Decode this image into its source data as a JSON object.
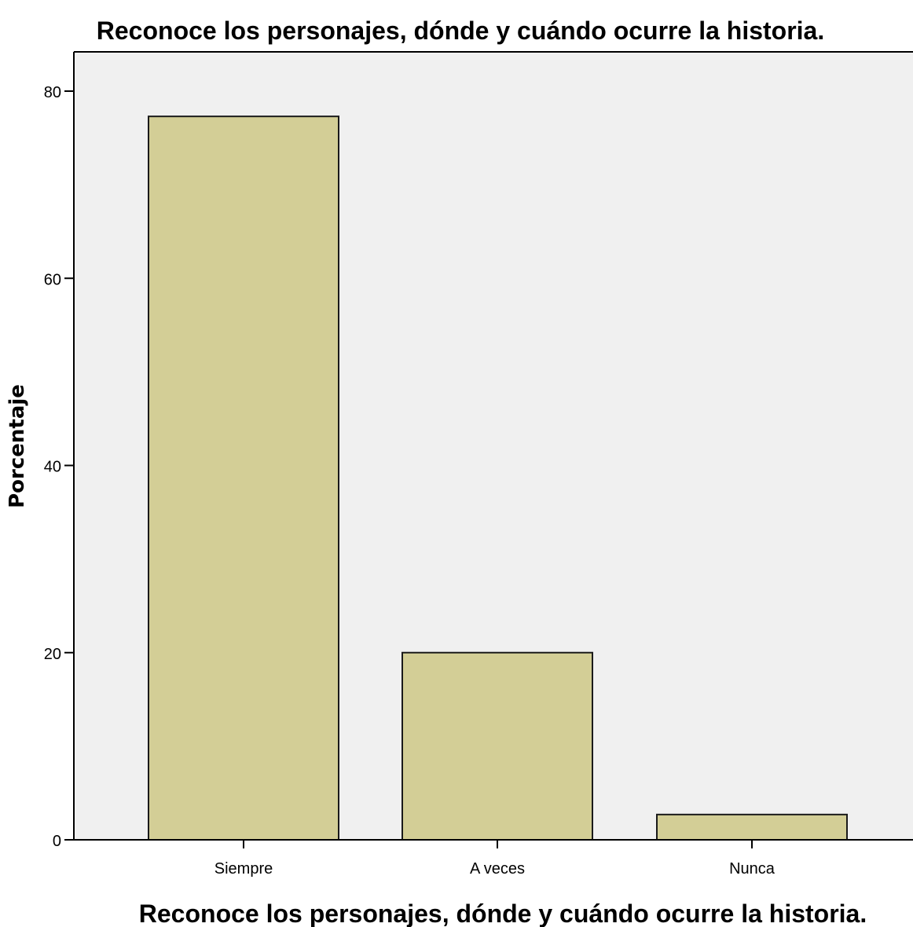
{
  "chart_data": {
    "type": "bar",
    "title": "Reconoce los personajes, dónde y cuándo ocurre la historia.",
    "xlabel": "Reconoce los personajes, dónde y cuándo ocurre la historia.",
    "ylabel": "Porcentaje",
    "categories": [
      "Siempre",
      "A veces",
      "Nunca"
    ],
    "values": [
      77.3,
      20.0,
      2.7
    ],
    "ylim": [
      0,
      80
    ],
    "yticks": [
      "0",
      "20",
      "40",
      "60",
      "80"
    ],
    "grid": false,
    "legend": "none",
    "colors": {
      "bar_fill": "#d3ce96",
      "bar_stroke": "#1a1a1a",
      "plot_background": "#f0f0f0",
      "axis": "#000000"
    }
  }
}
